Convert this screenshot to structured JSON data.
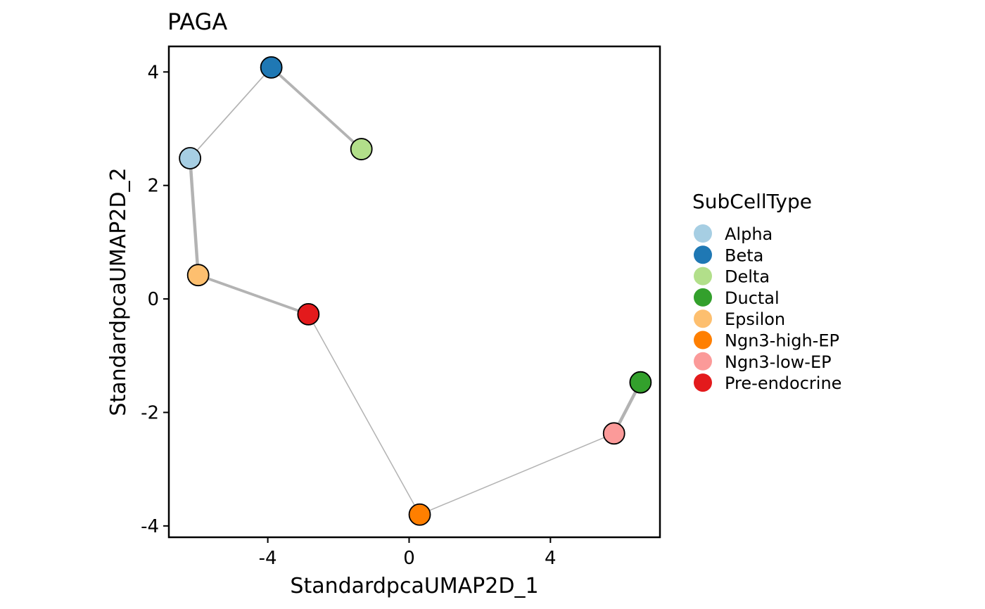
{
  "chart_data": {
    "type": "scatter",
    "title": "PAGA",
    "xlabel": "StandardpcaUMAP2D_1",
    "ylabel": "StandardpcaUMAP2D_2",
    "xlim": [
      -6.8,
      7.1
    ],
    "ylim": [
      -4.2,
      4.45
    ],
    "xticks": [
      -4,
      0,
      4
    ],
    "yticks": [
      -4,
      -2,
      0,
      2,
      4
    ],
    "xtick_labels": [
      "-4",
      "0",
      "4"
    ],
    "ytick_labels": [
      "-4",
      "-2",
      "0",
      "2",
      "4"
    ],
    "grid": false,
    "legend": {
      "title": "SubCellType",
      "position": "right",
      "entries": [
        "Alpha",
        "Beta",
        "Delta",
        "Ductal",
        "Epsilon",
        "Ngn3-high-EP",
        "Ngn3-low-EP",
        "Pre-endocrine"
      ]
    },
    "nodes": [
      {
        "name": "Alpha",
        "x": -6.2,
        "y": 2.48,
        "color": "#a6cee3"
      },
      {
        "name": "Beta",
        "x": -3.9,
        "y": 4.08,
        "color": "#1f78b4"
      },
      {
        "name": "Delta",
        "x": -1.35,
        "y": 2.64,
        "color": "#b2df8a"
      },
      {
        "name": "Ductal",
        "x": 6.55,
        "y": -1.47,
        "color": "#33a02c"
      },
      {
        "name": "Epsilon",
        "x": -5.97,
        "y": 0.42,
        "color": "#fdbf6f"
      },
      {
        "name": "Ngn3-high-EP",
        "x": 0.3,
        "y": -3.8,
        "color": "#ff7f00"
      },
      {
        "name": "Ngn3-low-EP",
        "x": 5.8,
        "y": -2.37,
        "color": "#fb9a99"
      },
      {
        "name": "Pre-endocrine",
        "x": -2.85,
        "y": -0.27,
        "color": "#e31a1c"
      }
    ],
    "edges": [
      {
        "from": "Alpha",
        "to": "Beta",
        "weight": 0.2
      },
      {
        "from": "Beta",
        "to": "Delta",
        "weight": 0.8
      },
      {
        "from": "Alpha",
        "to": "Epsilon",
        "weight": 1.0
      },
      {
        "from": "Epsilon",
        "to": "Pre-endocrine",
        "weight": 0.8
      },
      {
        "from": "Pre-endocrine",
        "to": "Ngn3-high-EP",
        "weight": 0.15
      },
      {
        "from": "Ngn3-high-EP",
        "to": "Ngn3-low-EP",
        "weight": 0.15
      },
      {
        "from": "Ngn3-low-EP",
        "to": "Ductal",
        "weight": 1.0
      }
    ],
    "edge_color": "#b3b3b3"
  }
}
